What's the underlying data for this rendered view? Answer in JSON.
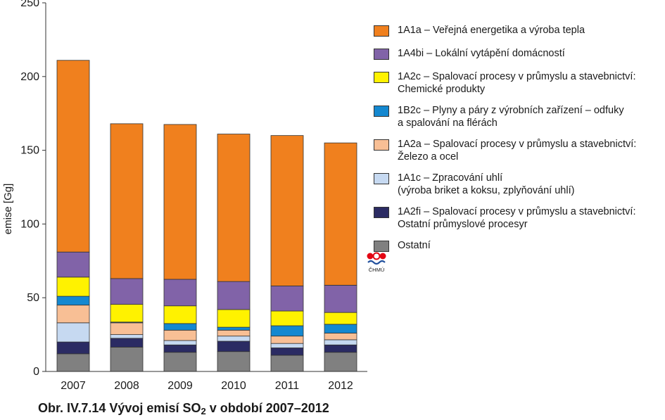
{
  "chart_data": {
    "type": "bar",
    "stacked": true,
    "categories": [
      "2007",
      "2008",
      "2009",
      "2010",
      "2011",
      "2012"
    ],
    "ylabel": "emise [Gg]",
    "ylim": [
      0,
      250
    ],
    "yticks": [
      0,
      50,
      100,
      150,
      200,
      250
    ],
    "grid": false,
    "legend_position": "right",
    "series": [
      {
        "name": "Ostatní",
        "color": "#808080",
        "values": [
          12,
          16.5,
          13,
          13.5,
          11,
          13
        ]
      },
      {
        "name": "1A2fi – Spalovací procesy v průmyslu a stavebnictví:\nOstatní průmyslové procesyr",
        "color": "#2b2b63",
        "values": [
          8,
          6,
          5,
          7,
          5,
          5
        ]
      },
      {
        "name": "1A1c – Zpracování uhlí\n(výroba briket a koksu, zplyňování uhlí)",
        "color": "#c6d9f1",
        "values": [
          13,
          2.5,
          3,
          3.5,
          3,
          3.5
        ]
      },
      {
        "name": "1A2a – Spalovací procesy v průmyslu a stavebnictví:\nŽelezo a ocel",
        "color": "#f8bf95",
        "values": [
          12,
          8,
          7,
          4,
          5,
          4.5
        ]
      },
      {
        "name": "1B2c – Plyny a páry z výrobních zařízení – odfuky\na spalování na flérách",
        "color": "#1488d0",
        "values": [
          6,
          0.5,
          4.5,
          2,
          7,
          6
        ]
      },
      {
        "name": "1A2c – Spalovací procesy v průmyslu a stavebnictví:\nChemické produkty",
        "color": "#fff200",
        "values": [
          13,
          12,
          12,
          12,
          10,
          8
        ]
      },
      {
        "name": "1A4bi  – Lokální vytápění domácností",
        "color": "#8163a8",
        "values": [
          17,
          17.5,
          18,
          19,
          17,
          18.5
        ]
      },
      {
        "name": "1A1a – Veřejná energetika a výroba tepla",
        "color": "#f0801e",
        "values": [
          130,
          105,
          105,
          100,
          102,
          96.5
        ]
      }
    ]
  },
  "legend_order": [
    7,
    6,
    5,
    4,
    3,
    2,
    1,
    0
  ],
  "caption": {
    "prefix": "Obr. IV.7.14  Vývoj emisí SO",
    "sub": "2",
    "suffix": " v období 2007–2012"
  },
  "logo": {
    "text": "ČHMÚ",
    "colors": [
      "#e30613",
      "#1f4e9c"
    ]
  }
}
